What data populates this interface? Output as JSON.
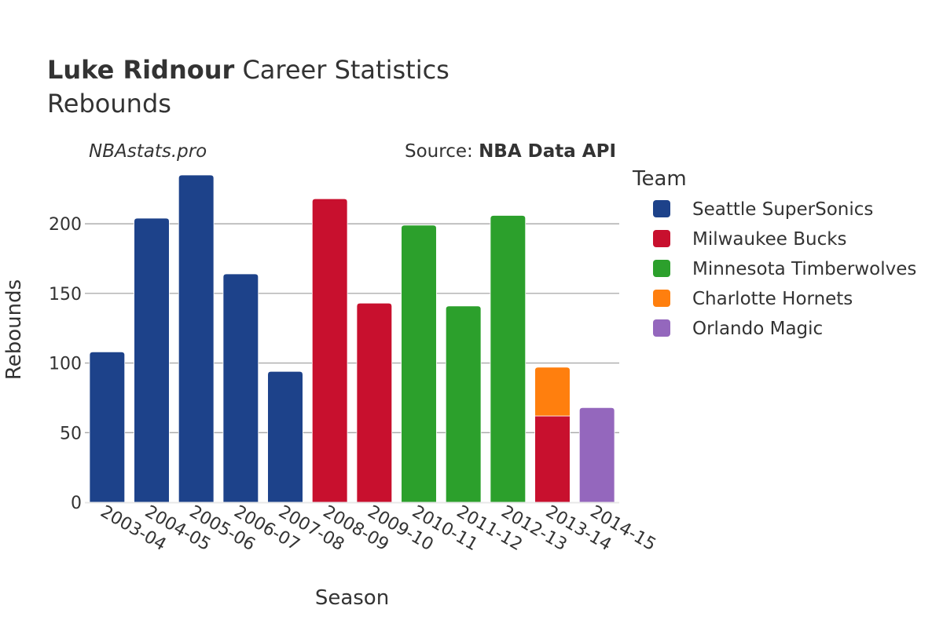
{
  "chart_data": {
    "type": "bar",
    "barmode": "stack",
    "title": {
      "bold": "Luke Ridnour",
      "rest": " Career Statistics",
      "subtitle": "Rebounds"
    },
    "watermark": "NBAstats.pro",
    "source": {
      "prefix": "Source: ",
      "name": "NBA Data API"
    },
    "xlabel": "Season",
    "ylabel": "Rebounds",
    "ylim": [
      0,
      235
    ],
    "yticks": [
      0,
      50,
      100,
      150,
      200
    ],
    "grid": true,
    "legend_title": "Team",
    "legend_position": "right",
    "categories": [
      "2003-04",
      "2004-05",
      "2005-06",
      "2006-07",
      "2007-08",
      "2008-09",
      "2009-10",
      "2010-11",
      "2011-12",
      "2012-13",
      "2013-14",
      "2014-15"
    ],
    "series": [
      {
        "name": "Seattle SuperSonics",
        "color": "#1d428a",
        "values": [
          108,
          204,
          235,
          164,
          94,
          0,
          0,
          0,
          0,
          0,
          0,
          0
        ]
      },
      {
        "name": "Milwaukee Bucks",
        "color": "#c8102e",
        "values": [
          0,
          0,
          0,
          0,
          0,
          218,
          143,
          0,
          0,
          0,
          62,
          0
        ]
      },
      {
        "name": "Minnesota Timberwolves",
        "color": "#2ca02c",
        "values": [
          0,
          0,
          0,
          0,
          0,
          0,
          0,
          199,
          141,
          206,
          0,
          0
        ]
      },
      {
        "name": "Charlotte Hornets",
        "color": "#ff7f0e",
        "values": [
          0,
          0,
          0,
          0,
          0,
          0,
          0,
          0,
          0,
          0,
          35,
          0
        ]
      },
      {
        "name": "Orlando Magic",
        "color": "#9467bd",
        "values": [
          0,
          0,
          0,
          0,
          0,
          0,
          0,
          0,
          0,
          0,
          0,
          68
        ]
      }
    ]
  }
}
